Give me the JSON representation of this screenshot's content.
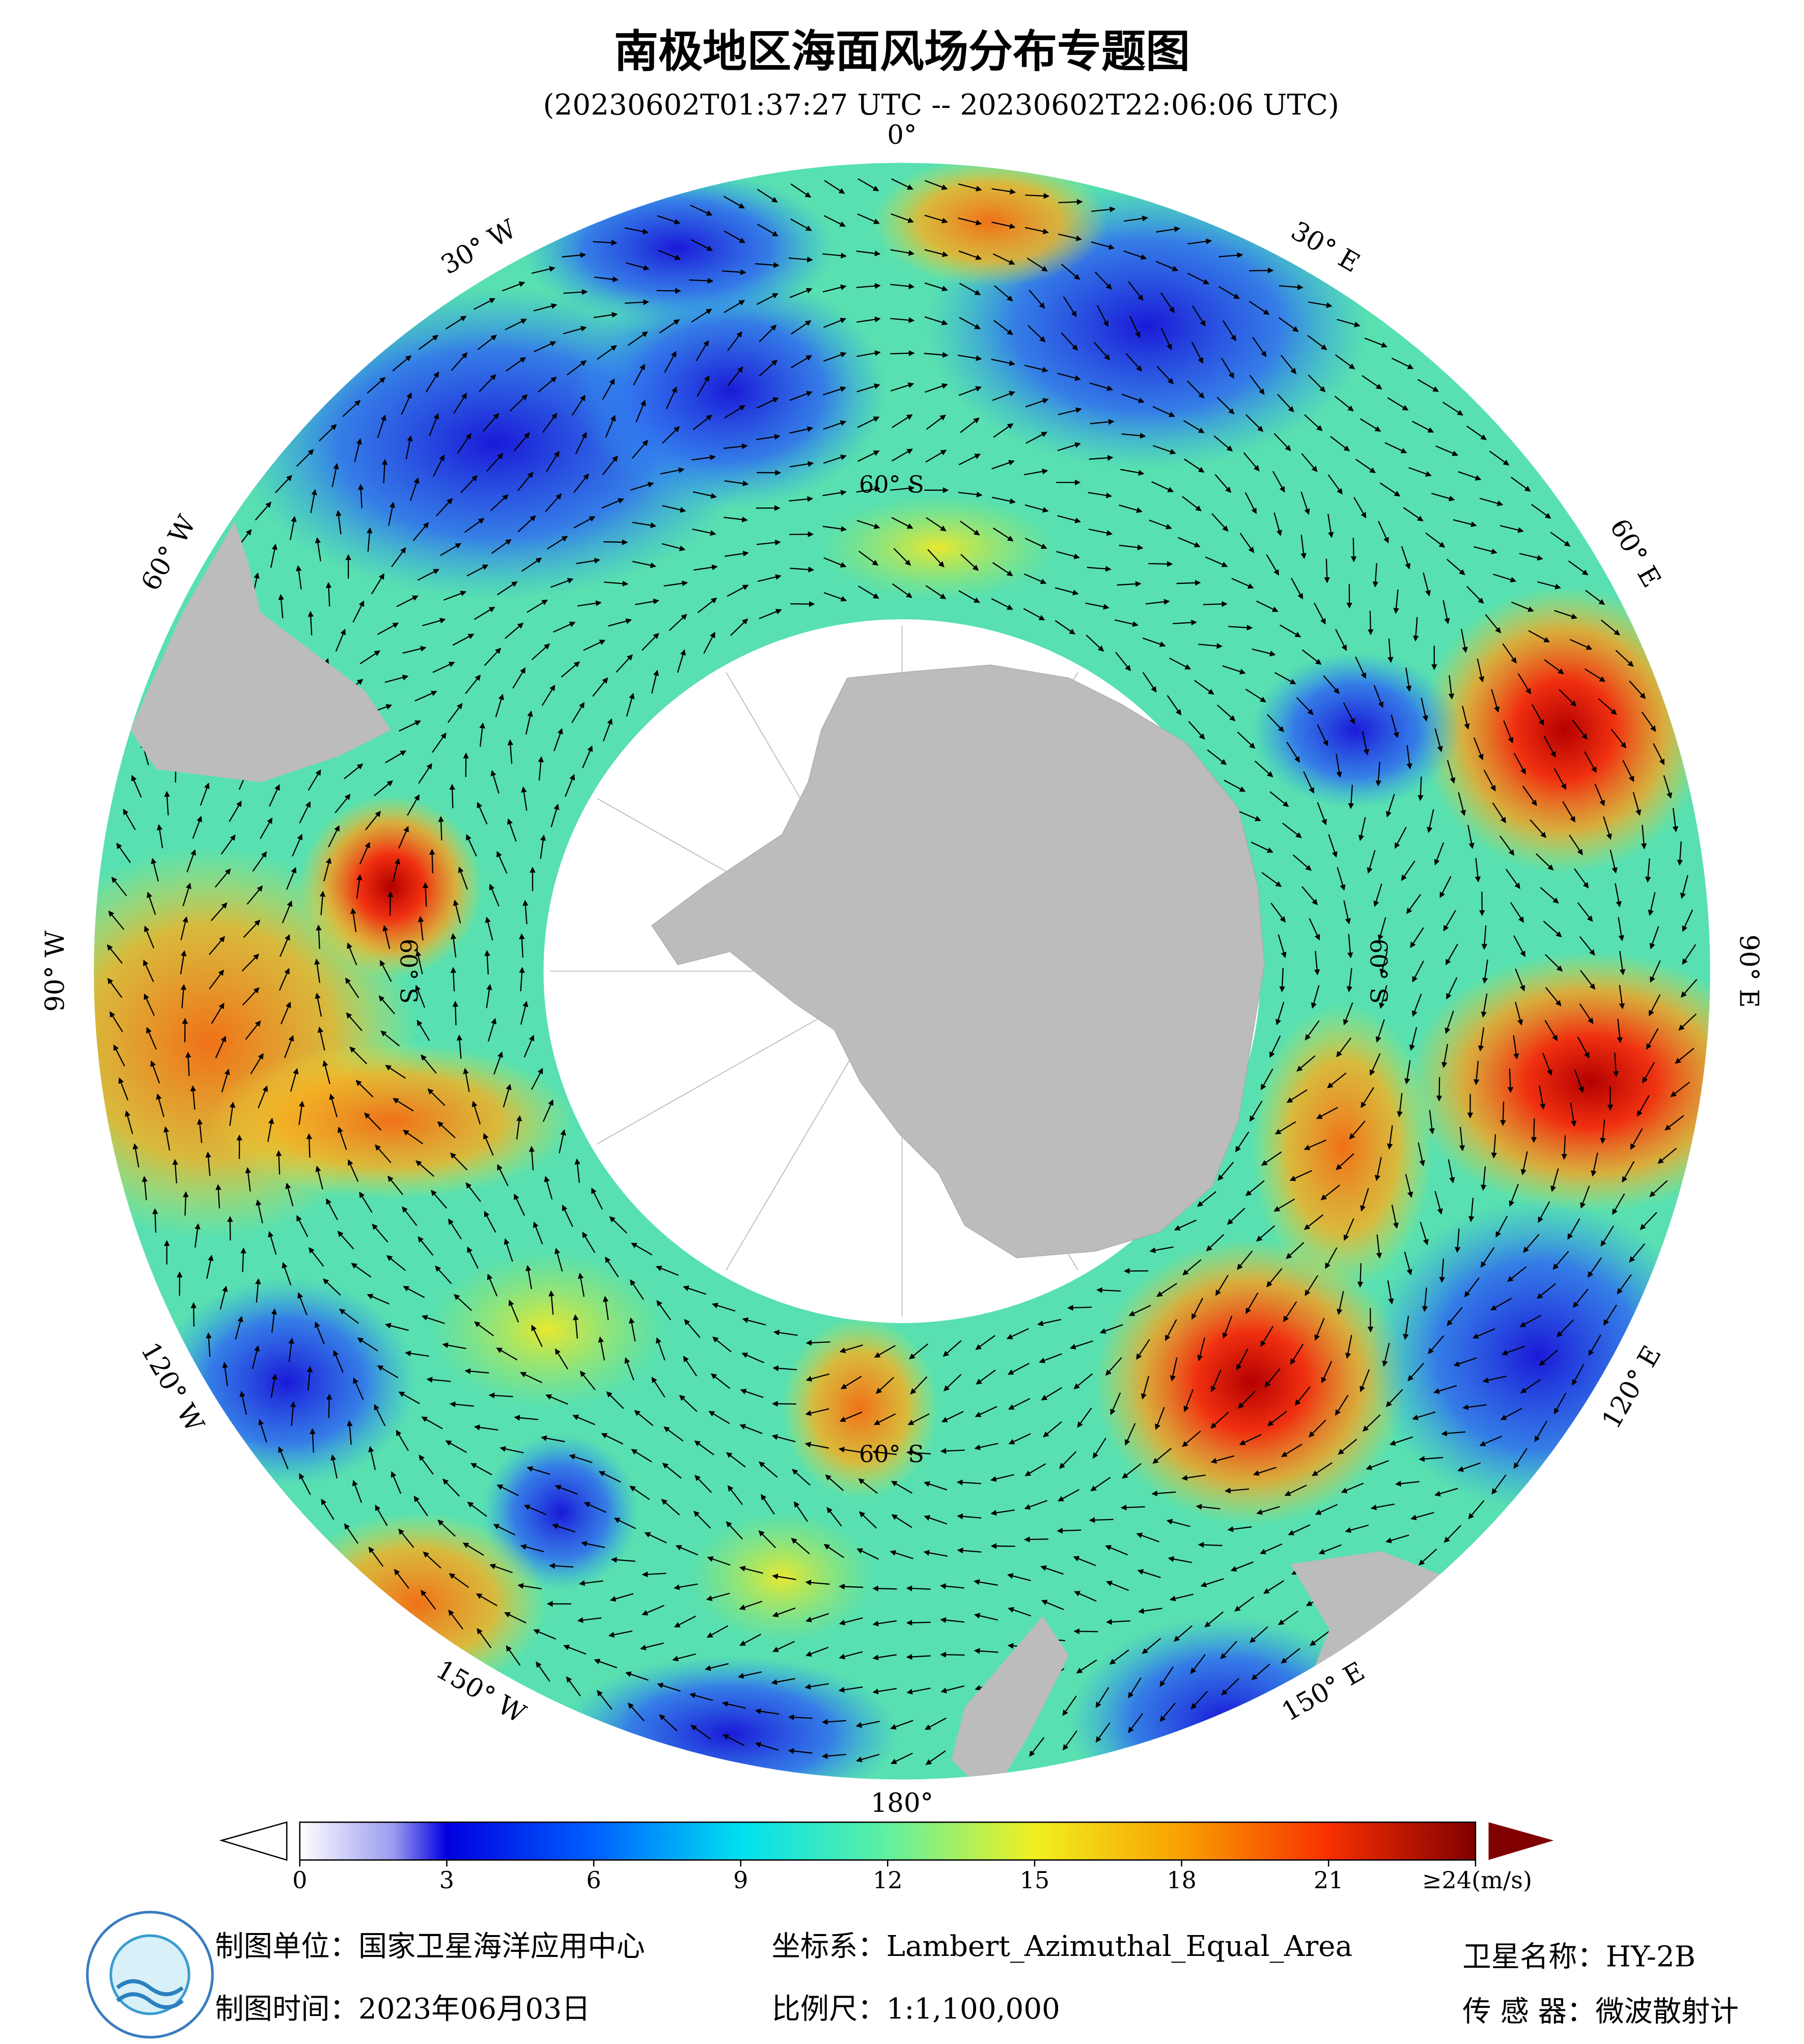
{
  "title": "南极地区海面风场分布专题图",
  "subtitle": "(20230602T01:37:27 UTC -- 20230602T22:06:06 UTC)",
  "longitude_labels": [
    "0°",
    "30° E",
    "60° E",
    "90° E",
    "120° E",
    "150° E",
    "180°",
    "150° W",
    "120° W",
    "90° W",
    "60° W",
    "30° W"
  ],
  "latitude_labels": [
    "60° S",
    "60° S",
    "60° S",
    "60° S"
  ],
  "colorbar": {
    "lim": [
      0,
      24
    ],
    "ticks": [
      0,
      3,
      6,
      9,
      12,
      15,
      18,
      21,
      {
        "value": 24,
        "label": "≥24(m/s)"
      }
    ]
  },
  "footer": {
    "producer": "制图单位：国家卫星海洋应用中心",
    "date": "制图时间：2023年06月03日",
    "crs": "坐标系：Lambert_Azimuthal_Equal_Area",
    "scale": "比例尺：1:1,100,000",
    "satellite": "卫星名称：HY-2B",
    "sensor": "传 感 器：微波散射计"
  }
}
